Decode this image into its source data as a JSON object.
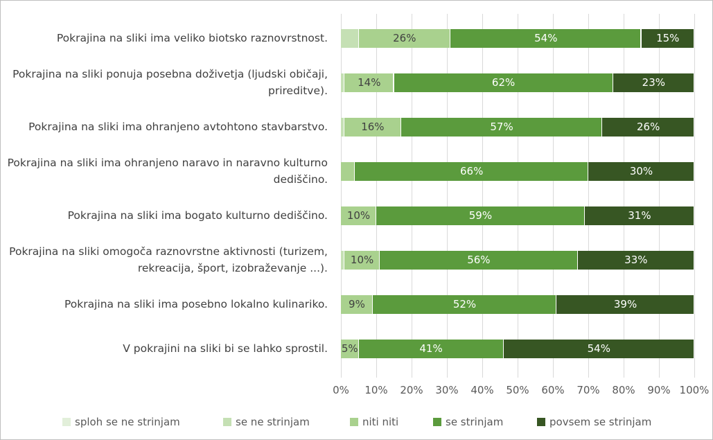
{
  "chart_data": {
    "type": "stacked-bar-horizontal",
    "categories": [
      "Pokrajina na sliki ima veliko biotsko raznovrstnost.",
      "Pokrajina na sliki ponuja posebna doživetja (ljudski običaji, prireditve).",
      "Pokrajina na sliki ima ohranjeno avtohtono stavbarstvo.",
      "Pokrajina na sliki ima ohranjeno naravo in naravno kulturno dediščino.",
      "Pokrajina na sliki ima bogato kulturno dediščino.",
      "Pokrajina na sliki omogoča raznovrstne aktivnosti (turizem, rekreacija, šport, izobraževanje ...).",
      "Pokrajina na sliki ima posebno lokalno kulinariko.",
      "V pokrajini na sliki bi se lahko sprostil."
    ],
    "series": [
      {
        "name": "sploh se ne strinjam",
        "color": "#e2efda",
        "values": [
          0,
          0,
          0,
          0,
          0,
          0,
          0,
          0
        ],
        "value_labels": [
          null,
          null,
          null,
          null,
          null,
          null,
          null,
          null
        ]
      },
      {
        "name": "se ne strinjam",
        "color": "#c5e0b4",
        "values": [
          5,
          1,
          1,
          0,
          0,
          1,
          0,
          0
        ],
        "value_labels": [
          null,
          null,
          null,
          null,
          null,
          null,
          null,
          null
        ]
      },
      {
        "name": "niti niti",
        "color": "#a9d18e",
        "values": [
          26,
          14,
          16,
          4,
          10,
          10,
          9,
          5
        ],
        "value_labels": [
          "26%",
          "14%",
          "16%",
          null,
          "10%",
          "10%",
          "9%",
          "5%"
        ]
      },
      {
        "name": "se strinjam",
        "color": "#5b9b3d",
        "values": [
          54,
          62,
          57,
          66,
          59,
          56,
          52,
          41
        ],
        "value_labels": [
          "54%",
          "62%",
          "57%",
          "66%",
          "59%",
          "56%",
          "52%",
          "41%"
        ]
      },
      {
        "name": "povsem se strinjam",
        "color": "#375623",
        "values": [
          15,
          23,
          26,
          30,
          31,
          33,
          39,
          54
        ],
        "value_labels": [
          "15%",
          "23%",
          "26%",
          "30%",
          "31%",
          "33%",
          "39%",
          "54%"
        ]
      }
    ],
    "xlim": [
      0,
      100
    ],
    "xticks": [
      {
        "value": 0,
        "label": "0%"
      },
      {
        "value": 10,
        "label": "10%"
      },
      {
        "value": 20,
        "label": "20%"
      },
      {
        "value": 30,
        "label": "30%"
      },
      {
        "value": 40,
        "label": "40%"
      },
      {
        "value": 50,
        "label": "50%"
      },
      {
        "value": 60,
        "label": "60%"
      },
      {
        "value": 70,
        "label": "70%"
      },
      {
        "value": 80,
        "label": "80%"
      },
      {
        "value": 90,
        "label": "90%"
      },
      {
        "value": 100,
        "label": "100%"
      }
    ],
    "grid": true,
    "legend": "bottom"
  }
}
